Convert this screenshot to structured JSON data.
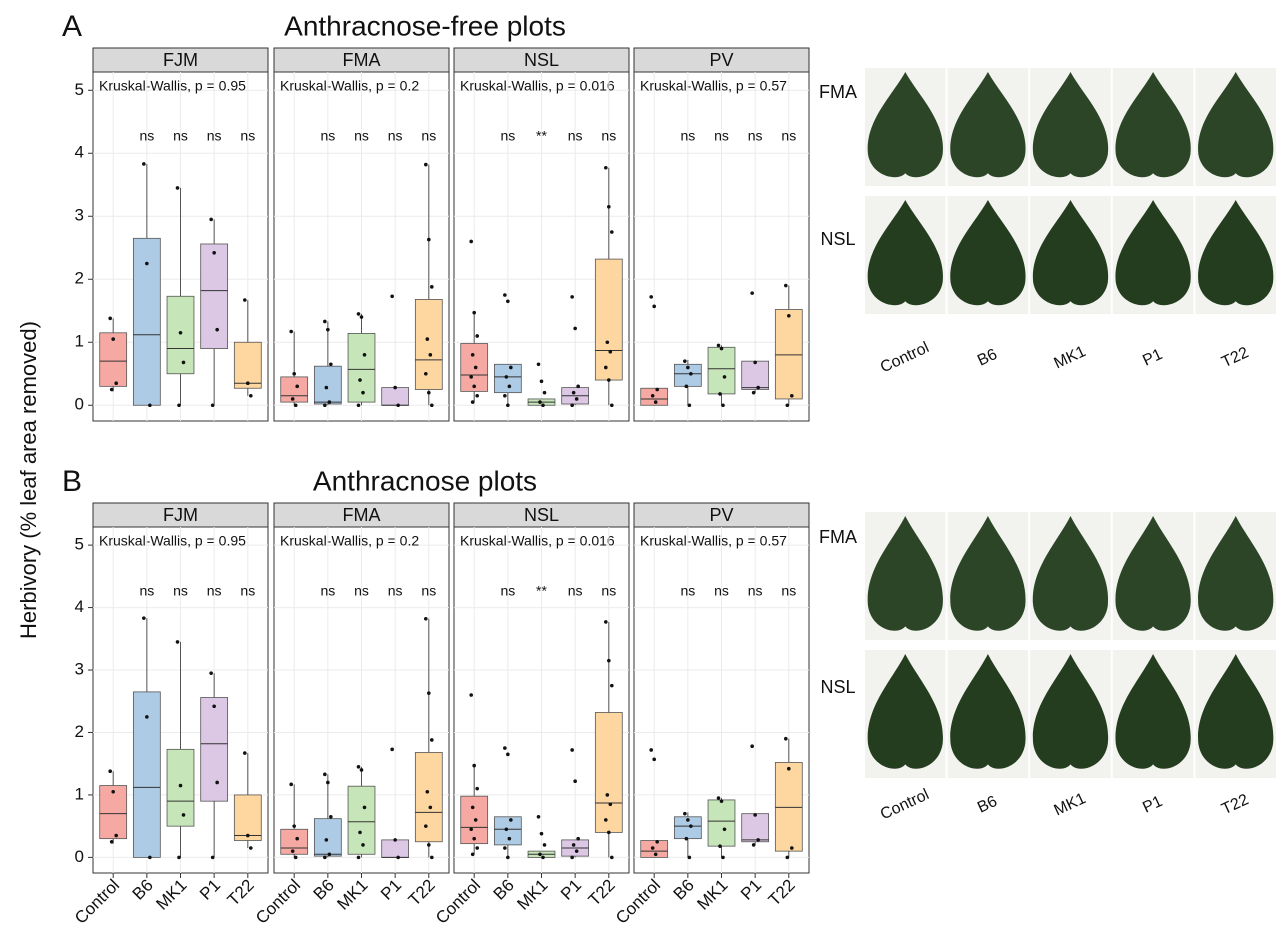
{
  "y_axis_label": "Herbivory (% leaf area removed)",
  "chart_data": [
    {
      "type": "box",
      "letter": "A",
      "title": "Anthracnose-free plots",
      "show_x_labels": false,
      "categories": [
        "Control",
        "B6",
        "MK1",
        "P1",
        "T22"
      ],
      "colors": [
        "#f6a9a3",
        "#aecbe6",
        "#c6e6b9",
        "#dcc7e5",
        "#fdd6a0"
      ],
      "ylim": [
        -0.25,
        5.29
      ],
      "yticks": [
        0,
        1,
        2,
        3,
        4,
        5
      ],
      "grid": true,
      "facets": [
        {
          "name": "FJM",
          "annotation": "Kruskal-Wallis, p = 0.95",
          "significance": [
            null,
            "ns",
            "ns",
            "ns",
            "ns"
          ],
          "boxes": [
            {
              "low": 0.22,
              "q1": 0.3,
              "median": 0.7,
              "q3": 1.15,
              "high": 1.38,
              "points": [
                1.38,
                1.05,
                0.35,
                0.25
              ]
            },
            {
              "low": 0,
              "q1": 0,
              "median": 1.12,
              "q3": 2.65,
              "high": 3.83,
              "points": [
                3.83,
                2.25,
                0
              ]
            },
            {
              "low": 0,
              "q1": 0.5,
              "median": 0.9,
              "q3": 1.73,
              "high": 3.45,
              "points": [
                3.45,
                1.15,
                0.68,
                0
              ]
            },
            {
              "low": 0,
              "q1": 0.9,
              "median": 1.82,
              "q3": 2.56,
              "high": 2.95,
              "points": [
                2.95,
                2.42,
                1.2,
                0
              ]
            },
            {
              "low": 0.15,
              "q1": 0.27,
              "median": 0.35,
              "q3": 1.0,
              "high": 1.67,
              "points": [
                1.67,
                0.35,
                0.15
              ]
            }
          ]
        },
        {
          "name": "FMA",
          "annotation": "Kruskal-Wallis, p = 0.2",
          "significance": [
            null,
            "ns",
            "ns",
            "ns",
            "ns"
          ],
          "boxes": [
            {
              "low": 0,
              "q1": 0.05,
              "median": 0.15,
              "q3": 0.45,
              "high": 1.17,
              "points": [
                1.17,
                0.5,
                0.3,
                0.1,
                0
              ]
            },
            {
              "low": 0,
              "q1": 0.02,
              "median": 0.05,
              "q3": 0.62,
              "high": 1.33,
              "points": [
                1.33,
                1.2,
                0.65,
                0.28,
                0.05,
                0
              ]
            },
            {
              "low": 0,
              "q1": 0.05,
              "median": 0.57,
              "q3": 1.14,
              "high": 1.45,
              "points": [
                1.45,
                1.4,
                0.8,
                0.4,
                0.2,
                0
              ]
            },
            {
              "low": 0,
              "q1": 0,
              "median": 0,
              "q3": 0.28,
              "high": 0.28,
              "points": [
                1.73,
                0.28,
                0
              ]
            },
            {
              "low": 0,
              "q1": 0.25,
              "median": 0.72,
              "q3": 1.68,
              "high": 3.82,
              "points": [
                3.82,
                2.63,
                1.88,
                1.05,
                0.8,
                0.5,
                0.2,
                0
              ]
            }
          ]
        },
        {
          "name": "NSL",
          "annotation": "Kruskal-Wallis, p = 0.016",
          "significance": [
            null,
            "ns",
            "**",
            "ns",
            "ns"
          ],
          "boxes": [
            {
              "low": 0.05,
              "q1": 0.22,
              "median": 0.48,
              "q3": 0.98,
              "high": 1.47,
              "points": [
                2.6,
                1.47,
                1.1,
                0.8,
                0.6,
                0.45,
                0.3,
                0.15,
                0.05
              ]
            },
            {
              "low": 0,
              "q1": 0.2,
              "median": 0.45,
              "q3": 0.65,
              "high": 0.65,
              "points": [
                1.75,
                1.65,
                0.6,
                0.45,
                0.3,
                0.15,
                0
              ]
            },
            {
              "low": 0,
              "q1": 0,
              "median": 0.05,
              "q3": 0.1,
              "high": 0.1,
              "points": [
                0.65,
                0.38,
                0.2,
                0.05,
                0
              ]
            },
            {
              "low": 0,
              "q1": 0.02,
              "median": 0.15,
              "q3": 0.28,
              "high": 0.28,
              "points": [
                1.72,
                1.22,
                0.3,
                0.2,
                0.1,
                0
              ]
            },
            {
              "low": 0,
              "q1": 0.4,
              "median": 0.87,
              "q3": 2.32,
              "high": 3.77,
              "points": [
                3.77,
                3.15,
                2.75,
                1.0,
                0.85,
                0.6,
                0.4,
                0
              ]
            }
          ]
        },
        {
          "name": "PV",
          "annotation": "Kruskal-Wallis, p = 0.57",
          "significance": [
            null,
            "ns",
            "ns",
            "ns",
            "ns"
          ],
          "boxes": [
            {
              "low": 0,
              "q1": 0,
              "median": 0.1,
              "q3": 0.27,
              "high": 0.27,
              "points": [
                1.72,
                1.57,
                0.25,
                0.15,
                0.05
              ]
            },
            {
              "low": 0,
              "q1": 0.3,
              "median": 0.5,
              "q3": 0.65,
              "high": 0.72,
              "points": [
                0.7,
                0.6,
                0.5,
                0.3,
                0
              ]
            },
            {
              "low": 0,
              "q1": 0.18,
              "median": 0.58,
              "q3": 0.92,
              "high": 0.95,
              "points": [
                0.95,
                0.9,
                0.45,
                0.18,
                0
              ]
            },
            {
              "low": 0.2,
              "q1": 0.25,
              "median": 0.28,
              "q3": 0.7,
              "high": 0.7,
              "points": [
                1.78,
                0.68,
                0.28,
                0.2
              ]
            },
            {
              "low": 0,
              "q1": 0.1,
              "median": 0.8,
              "q3": 1.52,
              "high": 1.9,
              "points": [
                1.9,
                1.42,
                0.15,
                0
              ]
            }
          ]
        }
      ],
      "photos": {
        "rows": [
          "FMA",
          "NSL"
        ],
        "columns": [
          "Control",
          "B6",
          "MK1",
          "P1",
          "T22"
        ]
      }
    },
    {
      "type": "box",
      "letter": "B",
      "title": "Anthracnose plots",
      "show_x_labels": true,
      "categories": [
        "Control",
        "B6",
        "MK1",
        "P1",
        "T22"
      ],
      "colors": [
        "#f6a9a3",
        "#aecbe6",
        "#c6e6b9",
        "#dcc7e5",
        "#fdd6a0"
      ],
      "ylim": [
        -0.25,
        5.29
      ],
      "yticks": [
        0,
        1,
        2,
        3,
        4,
        5
      ],
      "grid": true,
      "facets": [
        {
          "name": "FJM",
          "annotation": "Kruskal-Wallis, p = 0.95",
          "significance": [
            null,
            "ns",
            "ns",
            "ns",
            "ns"
          ],
          "boxes": [
            {
              "low": 0.22,
              "q1": 0.3,
              "median": 0.7,
              "q3": 1.15,
              "high": 1.38,
              "points": [
                1.38,
                1.05,
                0.35,
                0.25
              ]
            },
            {
              "low": 0,
              "q1": 0,
              "median": 1.12,
              "q3": 2.65,
              "high": 3.83,
              "points": [
                3.83,
                2.25,
                0
              ]
            },
            {
              "low": 0,
              "q1": 0.5,
              "median": 0.9,
              "q3": 1.73,
              "high": 3.45,
              "points": [
                3.45,
                1.15,
                0.68,
                0
              ]
            },
            {
              "low": 0,
              "q1": 0.9,
              "median": 1.82,
              "q3": 2.56,
              "high": 2.95,
              "points": [
                2.95,
                2.42,
                1.2,
                0
              ]
            },
            {
              "low": 0.15,
              "q1": 0.27,
              "median": 0.35,
              "q3": 1.0,
              "high": 1.67,
              "points": [
                1.67,
                0.35,
                0.15
              ]
            }
          ]
        },
        {
          "name": "FMA",
          "annotation": "Kruskal-Wallis, p = 0.2",
          "significance": [
            null,
            "ns",
            "ns",
            "ns",
            "ns"
          ],
          "boxes": [
            {
              "low": 0,
              "q1": 0.05,
              "median": 0.15,
              "q3": 0.45,
              "high": 1.17,
              "points": [
                1.17,
                0.5,
                0.3,
                0.1,
                0
              ]
            },
            {
              "low": 0,
              "q1": 0.02,
              "median": 0.05,
              "q3": 0.62,
              "high": 1.33,
              "points": [
                1.33,
                1.2,
                0.65,
                0.28,
                0.05,
                0
              ]
            },
            {
              "low": 0,
              "q1": 0.05,
              "median": 0.57,
              "q3": 1.14,
              "high": 1.45,
              "points": [
                1.45,
                1.4,
                0.8,
                0.4,
                0.2,
                0
              ]
            },
            {
              "low": 0,
              "q1": 0,
              "median": 0,
              "q3": 0.28,
              "high": 0.28,
              "points": [
                1.73,
                0.28,
                0
              ]
            },
            {
              "low": 0,
              "q1": 0.25,
              "median": 0.72,
              "q3": 1.68,
              "high": 3.82,
              "points": [
                3.82,
                2.63,
                1.88,
                1.05,
                0.8,
                0.5,
                0.2,
                0
              ]
            }
          ]
        },
        {
          "name": "NSL",
          "annotation": "Kruskal-Wallis, p = 0.016",
          "significance": [
            null,
            "ns",
            "**",
            "ns",
            "ns"
          ],
          "boxes": [
            {
              "low": 0.05,
              "q1": 0.22,
              "median": 0.48,
              "q3": 0.98,
              "high": 1.47,
              "points": [
                2.6,
                1.47,
                1.1,
                0.8,
                0.6,
                0.45,
                0.3,
                0.15,
                0.05
              ]
            },
            {
              "low": 0,
              "q1": 0.2,
              "median": 0.45,
              "q3": 0.65,
              "high": 0.65,
              "points": [
                1.75,
                1.65,
                0.6,
                0.45,
                0.3,
                0.15,
                0
              ]
            },
            {
              "low": 0,
              "q1": 0,
              "median": 0.05,
              "q3": 0.1,
              "high": 0.1,
              "points": [
                0.65,
                0.38,
                0.2,
                0.05,
                0
              ]
            },
            {
              "low": 0,
              "q1": 0.02,
              "median": 0.15,
              "q3": 0.28,
              "high": 0.28,
              "points": [
                1.72,
                1.22,
                0.3,
                0.2,
                0.1,
                0
              ]
            },
            {
              "low": 0,
              "q1": 0.4,
              "median": 0.87,
              "q3": 2.32,
              "high": 3.77,
              "points": [
                3.77,
                3.15,
                2.75,
                1.0,
                0.85,
                0.6,
                0.4,
                0
              ]
            }
          ]
        },
        {
          "name": "PV",
          "annotation": "Kruskal-Wallis, p = 0.57",
          "significance": [
            null,
            "ns",
            "ns",
            "ns",
            "ns"
          ],
          "boxes": [
            {
              "low": 0,
              "q1": 0,
              "median": 0.1,
              "q3": 0.27,
              "high": 0.27,
              "points": [
                1.72,
                1.57,
                0.25,
                0.15,
                0.05
              ]
            },
            {
              "low": 0,
              "q1": 0.3,
              "median": 0.5,
              "q3": 0.65,
              "high": 0.72,
              "points": [
                0.7,
                0.6,
                0.5,
                0.3,
                0
              ]
            },
            {
              "low": 0,
              "q1": 0.18,
              "median": 0.58,
              "q3": 0.92,
              "high": 0.95,
              "points": [
                0.95,
                0.9,
                0.45,
                0.18,
                0
              ]
            },
            {
              "low": 0.2,
              "q1": 0.25,
              "median": 0.28,
              "q3": 0.7,
              "high": 0.7,
              "points": [
                1.78,
                0.68,
                0.28,
                0.2
              ]
            },
            {
              "low": 0,
              "q1": 0.1,
              "median": 0.8,
              "q3": 1.52,
              "high": 1.9,
              "points": [
                1.9,
                1.42,
                0.15,
                0
              ]
            }
          ]
        }
      ],
      "photos": {
        "rows": [
          "FMA",
          "NSL"
        ],
        "columns": [
          "Control",
          "B6",
          "MK1",
          "P1",
          "T22"
        ]
      }
    }
  ]
}
